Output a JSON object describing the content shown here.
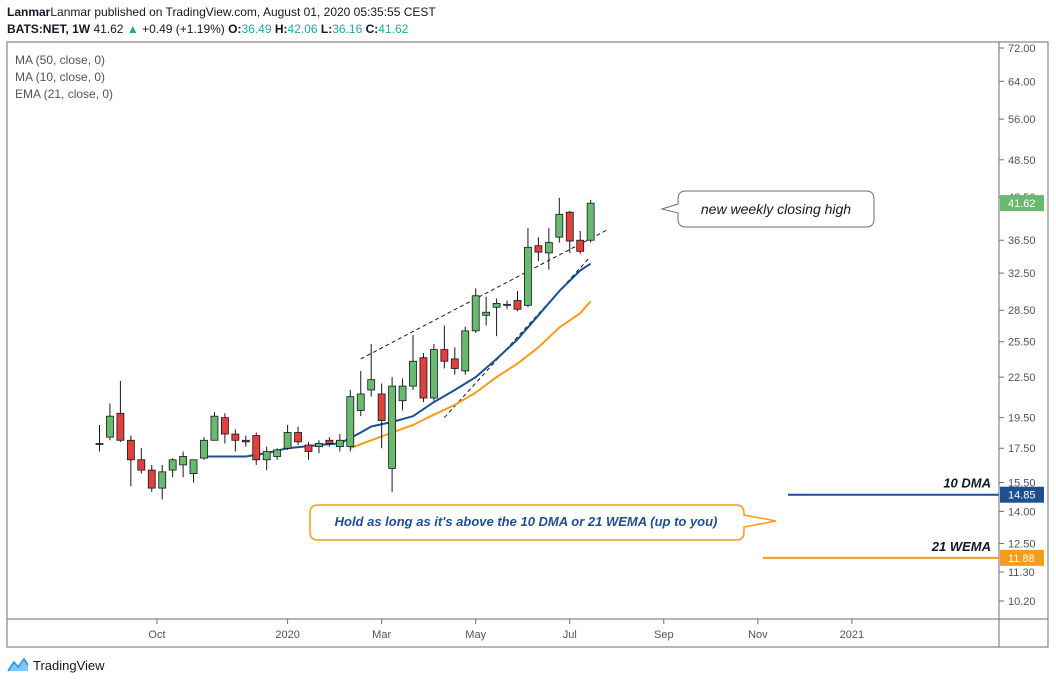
{
  "header": {
    "line1": "Lanmar published on TradingView.com, August 01, 2020 05:35:55 CEST",
    "symbol": "BATS:NET, 1W",
    "last": "41.62",
    "change": "+0.49 (+1.19%)",
    "o_label": "O:",
    "o_value": "36.49",
    "h_label": "H:",
    "h_value": "42.06",
    "l_label": "L:",
    "l_value": "36.16",
    "c_label": "C:",
    "c_value": "41.62"
  },
  "indicators": [
    "MA (50, close, 0)",
    "MA (10, close, 0)",
    "EMA (21, close, 0)"
  ],
  "footer": {
    "brand": "TradingView"
  },
  "colors": {
    "up": "#6aba6e",
    "down": "#e0413a",
    "ma10": "#1d4f91",
    "ema21": "#f59c1a",
    "upText": "#26a69a"
  },
  "chart_data": {
    "type": "candlestick",
    "y_scale": "log",
    "y_ticks": [
      "72.00",
      "64.00",
      "56.00",
      "48.50",
      "42.50",
      "36.50",
      "32.50",
      "28.50",
      "25.50",
      "22.50",
      "19.50",
      "17.50",
      "15.50",
      "14.00",
      "12.50",
      "11.30",
      "10.20"
    ],
    "x_ticks": [
      {
        "label": "Oct",
        "week": 5.5
      },
      {
        "label": "2020",
        "week": 18
      },
      {
        "label": "Mar",
        "week": 27
      },
      {
        "label": "May",
        "week": 36
      },
      {
        "label": "Jul",
        "week": 45
      },
      {
        "label": "Sep",
        "week": 54
      },
      {
        "label": "Nov",
        "week": 63
      },
      {
        "label": "2021",
        "week": 72
      }
    ],
    "candles": [
      {
        "o": 17.8,
        "h": 19.0,
        "l": 17.3,
        "c": 17.8
      },
      {
        "o": 18.2,
        "h": 20.5,
        "l": 18.0,
        "c": 19.6
      },
      {
        "o": 19.8,
        "h": 22.2,
        "l": 17.9,
        "c": 18.0
      },
      {
        "o": 18.0,
        "h": 18.3,
        "l": 15.3,
        "c": 16.8
      },
      {
        "o": 16.8,
        "h": 17.5,
        "l": 16.0,
        "c": 16.2
      },
      {
        "o": 16.2,
        "h": 16.5,
        "l": 15.0,
        "c": 15.2
      },
      {
        "o": 15.2,
        "h": 16.5,
        "l": 14.6,
        "c": 16.1
      },
      {
        "o": 16.2,
        "h": 16.9,
        "l": 15.8,
        "c": 16.8
      },
      {
        "o": 16.5,
        "h": 17.3,
        "l": 15.8,
        "c": 17.0
      },
      {
        "o": 16.0,
        "h": 16.8,
        "l": 15.5,
        "c": 16.8
      },
      {
        "o": 16.9,
        "h": 18.2,
        "l": 16.8,
        "c": 18.0
      },
      {
        "o": 18.0,
        "h": 19.9,
        "l": 18.0,
        "c": 19.6
      },
      {
        "o": 19.5,
        "h": 19.8,
        "l": 17.8,
        "c": 18.4
      },
      {
        "o": 18.4,
        "h": 18.7,
        "l": 17.3,
        "c": 18.0
      },
      {
        "o": 18.0,
        "h": 18.3,
        "l": 17.6,
        "c": 17.9
      },
      {
        "o": 18.3,
        "h": 18.5,
        "l": 16.5,
        "c": 16.8
      },
      {
        "o": 16.8,
        "h": 17.6,
        "l": 16.2,
        "c": 17.3
      },
      {
        "o": 17.0,
        "h": 17.5,
        "l": 16.8,
        "c": 17.4
      },
      {
        "o": 17.5,
        "h": 19.0,
        "l": 17.4,
        "c": 18.5
      },
      {
        "o": 18.5,
        "h": 18.9,
        "l": 17.7,
        "c": 17.9
      },
      {
        "o": 17.7,
        "h": 17.9,
        "l": 16.8,
        "c": 17.3
      },
      {
        "o": 17.6,
        "h": 18.0,
        "l": 17.2,
        "c": 17.8
      },
      {
        "o": 18.0,
        "h": 18.2,
        "l": 17.6,
        "c": 17.8
      },
      {
        "o": 17.6,
        "h": 18.4,
        "l": 17.3,
        "c": 18.0
      },
      {
        "o": 17.6,
        "h": 21.5,
        "l": 17.3,
        "c": 21.0
      },
      {
        "o": 20.0,
        "h": 23.0,
        "l": 19.6,
        "c": 21.2
      },
      {
        "o": 21.5,
        "h": 25.3,
        "l": 21.0,
        "c": 22.3
      },
      {
        "o": 21.2,
        "h": 22.0,
        "l": 17.5,
        "c": 19.3
      },
      {
        "o": 16.3,
        "h": 22.5,
        "l": 15.0,
        "c": 21.8
      },
      {
        "o": 20.7,
        "h": 22.4,
        "l": 20.0,
        "c": 21.8
      },
      {
        "o": 21.8,
        "h": 26.1,
        "l": 21.5,
        "c": 23.8
      },
      {
        "o": 24.1,
        "h": 24.5,
        "l": 20.6,
        "c": 20.9
      },
      {
        "o": 20.9,
        "h": 25.3,
        "l": 20.7,
        "c": 24.8
      },
      {
        "o": 24.8,
        "h": 27.0,
        "l": 23.2,
        "c": 23.8
      },
      {
        "o": 24.0,
        "h": 25.0,
        "l": 22.7,
        "c": 23.2
      },
      {
        "o": 23.0,
        "h": 26.9,
        "l": 22.7,
        "c": 26.5
      },
      {
        "o": 26.5,
        "h": 30.8,
        "l": 26.3,
        "c": 30.0
      },
      {
        "o": 28.0,
        "h": 29.9,
        "l": 27.0,
        "c": 28.3
      },
      {
        "o": 28.8,
        "h": 29.7,
        "l": 26.0,
        "c": 29.2
      },
      {
        "o": 29.0,
        "h": 29.5,
        "l": 28.6,
        "c": 29.1
      },
      {
        "o": 29.5,
        "h": 30.5,
        "l": 28.4,
        "c": 28.6
      },
      {
        "o": 29.0,
        "h": 38.1,
        "l": 28.8,
        "c": 35.6
      },
      {
        "o": 35.8,
        "h": 36.9,
        "l": 33.9,
        "c": 35.0
      },
      {
        "o": 34.9,
        "h": 38.1,
        "l": 32.9,
        "c": 36.2
      },
      {
        "o": 36.9,
        "h": 42.4,
        "l": 36.2,
        "c": 40.0
      },
      {
        "o": 40.3,
        "h": 40.5,
        "l": 34.9,
        "c": 36.4
      },
      {
        "o": 36.5,
        "h": 37.7,
        "l": 34.8,
        "c": 35.1
      },
      {
        "o": 36.5,
        "h": 42.1,
        "l": 36.2,
        "c": 41.6
      }
    ],
    "ma10": [
      {
        "week": 10,
        "v": 17.0
      },
      {
        "week": 14,
        "v": 17.0
      },
      {
        "week": 16,
        "v": 17.2
      },
      {
        "week": 18,
        "v": 17.5
      },
      {
        "week": 21,
        "v": 17.7
      },
      {
        "week": 23,
        "v": 17.8
      },
      {
        "week": 25,
        "v": 18.5
      },
      {
        "week": 26,
        "v": 18.9
      },
      {
        "week": 28,
        "v": 19.2
      },
      {
        "week": 30,
        "v": 19.6
      },
      {
        "week": 32,
        "v": 20.6
      },
      {
        "week": 34,
        "v": 21.5
      },
      {
        "week": 36,
        "v": 22.5
      },
      {
        "week": 38,
        "v": 24.0
      },
      {
        "week": 40,
        "v": 25.7
      },
      {
        "week": 42,
        "v": 28.0
      },
      {
        "week": 44,
        "v": 30.5
      },
      {
        "week": 46,
        "v": 32.8
      },
      {
        "week": 47,
        "v": 33.6
      }
    ],
    "ema21": [
      {
        "week": 24,
        "v": 17.5
      },
      {
        "week": 26,
        "v": 18.0
      },
      {
        "week": 28,
        "v": 18.5
      },
      {
        "week": 30,
        "v": 19.0
      },
      {
        "week": 32,
        "v": 19.7
      },
      {
        "week": 34,
        "v": 20.4
      },
      {
        "week": 36,
        "v": 21.3
      },
      {
        "week": 38,
        "v": 22.5
      },
      {
        "week": 40,
        "v": 23.6
      },
      {
        "week": 42,
        "v": 25.0
      },
      {
        "week": 44,
        "v": 26.8
      },
      {
        "week": 46,
        "v": 28.2
      },
      {
        "week": 47,
        "v": 29.4
      }
    ],
    "trendlines": [
      {
        "from": {
          "week": 25,
          "v": 24.0
        },
        "to": {
          "week": 48.5,
          "v": 37.8
        }
      },
      {
        "from": {
          "week": 33,
          "v": 19.5
        },
        "to": {
          "week": 46.8,
          "v": 34.2
        }
      }
    ],
    "price_labels": [
      {
        "value": 41.62,
        "text": "41.62",
        "color": "#6aba6e"
      },
      {
        "value": 14.85,
        "text": "14.85",
        "color": "#1d4f91"
      },
      {
        "value": 11.88,
        "text": "11.88",
        "color": "#f59c1a"
      }
    ],
    "levels": [
      {
        "value": 14.85,
        "label": "10 DMA",
        "color": "#1d4f91"
      },
      {
        "value": 11.88,
        "label": "21 WEMA",
        "color": "#f59c1a"
      }
    ],
    "annotations": [
      {
        "text": "new weekly closing high"
      },
      {
        "text": "Hold as long as it's above the 10 DMA or 21 WEMA (up to you)"
      }
    ]
  }
}
